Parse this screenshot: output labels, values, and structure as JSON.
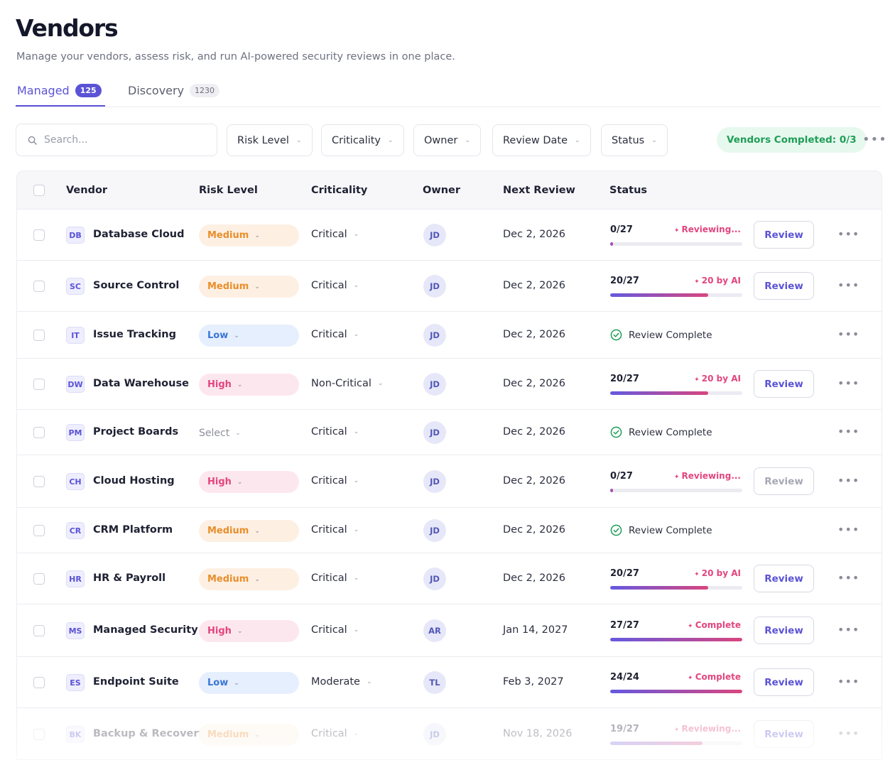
{
  "page": {
    "title": "Vendors",
    "subtitle": "Manage your vendors, assess risk, and run AI-powered security reviews in one place."
  },
  "tabs": [
    {
      "label": "Managed",
      "count": "125"
    },
    {
      "label": "Discovery",
      "count": "1230"
    }
  ],
  "toolbar": {
    "search_placeholder": "Search...",
    "filters": [
      "Risk Level",
      "Criticality",
      "Owner",
      "Review Date",
      "Status"
    ],
    "completed": "Vendors Completed: 0/3"
  },
  "table": {
    "headers": [
      "Vendor",
      "Risk Level",
      "Criticality",
      "Owner",
      "Next Review",
      "Status"
    ],
    "review_label": "Review",
    "complete_label": "Review Complete",
    "rows": [
      {
        "abbr": "DB",
        "name": "Database Cloud",
        "risk": "Medium",
        "crit": "Critical",
        "owner": "JD",
        "date": "Dec 2, 2026",
        "kind": "progress",
        "count": "0/27",
        "label": "Reviewing...",
        "pct": 2,
        "button": "enabled"
      },
      {
        "abbr": "SC",
        "name": "Source Control",
        "risk": "Medium",
        "crit": "Critical",
        "owner": "JD",
        "date": "Dec 2, 2026",
        "kind": "progress",
        "count": "20/27",
        "label": "20 by AI",
        "pct": 74,
        "button": "enabled"
      },
      {
        "abbr": "IT",
        "name": "Issue Tracking",
        "risk": "Low",
        "crit": "Critical",
        "owner": "JD",
        "date": "Dec 2, 2026",
        "kind": "complete"
      },
      {
        "abbr": "DW",
        "name": "Data Warehouse",
        "risk": "High",
        "crit": "Non-Critical",
        "owner": "JD",
        "date": "Dec 2, 2026",
        "kind": "progress",
        "count": "20/27",
        "label": "20 by AI",
        "pct": 74,
        "button": "enabled"
      },
      {
        "abbr": "PM",
        "name": "Project Boards",
        "risk": "Select",
        "crit": "Critical",
        "owner": "JD",
        "date": "Dec 2, 2026",
        "kind": "complete"
      },
      {
        "abbr": "CH",
        "name": "Cloud Hosting",
        "risk": "High",
        "crit": "Critical",
        "owner": "JD",
        "date": "Dec 2, 2026",
        "kind": "progress",
        "count": "0/27",
        "label": "Reviewing...",
        "pct": 2,
        "button": "disabled"
      },
      {
        "abbr": "CR",
        "name": "CRM Platform",
        "risk": "Medium",
        "crit": "Critical",
        "owner": "JD",
        "date": "Dec 2, 2026",
        "kind": "complete"
      },
      {
        "abbr": "HR",
        "name": "HR & Payroll",
        "risk": "Medium",
        "crit": "Critical",
        "owner": "JD",
        "date": "Dec 2, 2026",
        "kind": "progress",
        "count": "20/27",
        "label": "20 by AI",
        "pct": 74,
        "button": "enabled"
      },
      {
        "abbr": "MS",
        "name": "Managed Security",
        "risk": "High",
        "crit": "Critical",
        "owner": "AR",
        "date": "Jan 14, 2027",
        "kind": "progress",
        "count": "27/27",
        "label": "Complete",
        "pct": 100,
        "button": "enabled"
      },
      {
        "abbr": "ES",
        "name": "Endpoint Suite",
        "risk": "Low",
        "crit": "Moderate",
        "owner": "TL",
        "date": "Feb 3, 2027",
        "kind": "progress",
        "count": "24/24",
        "label": "Complete",
        "pct": 100,
        "button": "enabled"
      },
      {
        "abbr": "BK",
        "name": "Backup & Recovery",
        "risk": "Medium",
        "crit": "Critical",
        "owner": "JD",
        "date": "Nov 18, 2026",
        "kind": "progress",
        "count": "19/27",
        "label": "Reviewing...",
        "pct": 70,
        "button": "enabled"
      }
    ]
  },
  "colors": {
    "accent": "#5b53d6",
    "success": "#1e9e57",
    "medium": "#e98e2b",
    "low": "#3a76d8",
    "high": "#e2467e"
  }
}
